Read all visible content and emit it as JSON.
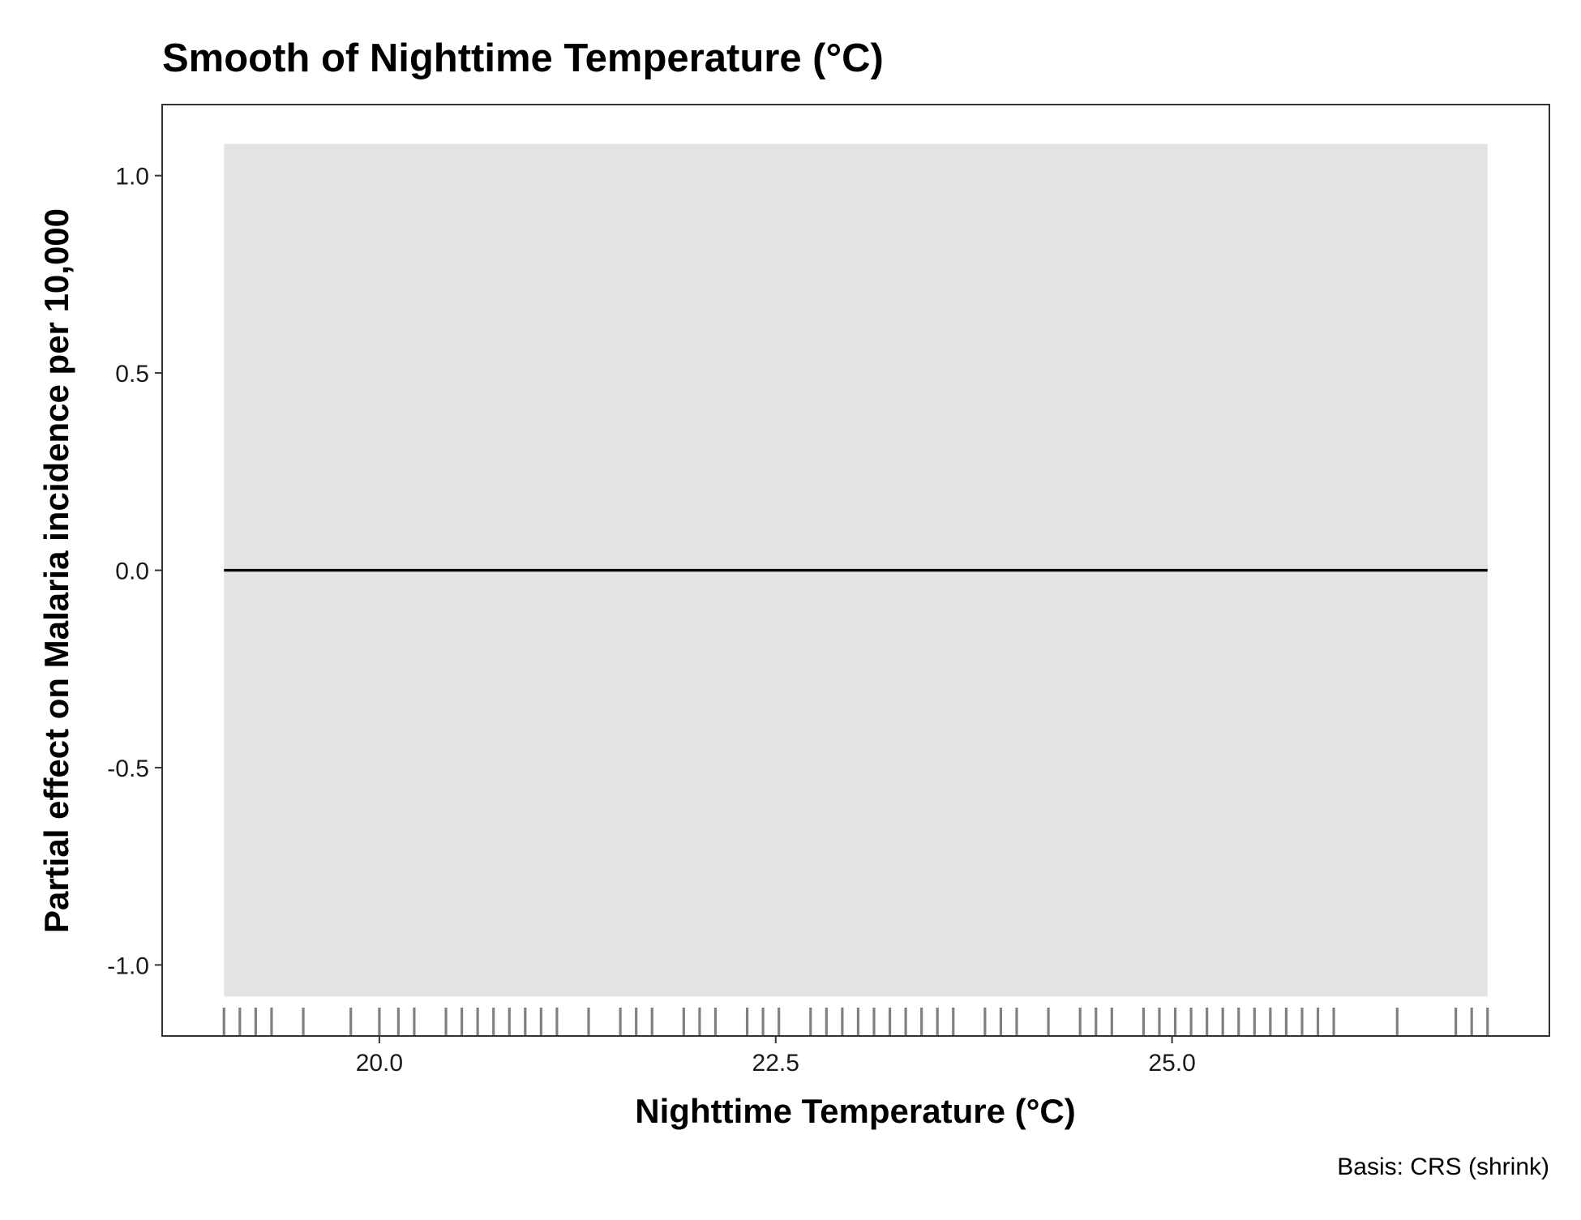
{
  "chart_data": {
    "type": "line",
    "title": "Smooth of Nighttime Temperature (°C)",
    "xlabel": "Nighttime Temperature (°C)",
    "ylabel": "Partial effect on Malaria incidence per 10,000",
    "caption": "Basis: CRS (shrink)",
    "xlim": [
      18.63,
      27.38
    ],
    "ylim": [
      -1.18,
      1.18
    ],
    "x_ticks": [
      20.0,
      22.5,
      25.0
    ],
    "x_tick_labels": [
      "20.0",
      "22.5",
      "25.0"
    ],
    "y_ticks": [
      -1.0,
      -0.5,
      0.0,
      0.5,
      1.0
    ],
    "y_tick_labels": [
      "-1.0",
      "-0.5",
      "0.0",
      "0.5",
      "1.0"
    ],
    "grid": false,
    "series": [
      {
        "x": [
          19.02,
          26.99
        ],
        "y": [
          0.0,
          0.0
        ],
        "lower": [
          -1.08,
          -1.08
        ],
        "upper": [
          1.08,
          1.08
        ]
      }
    ],
    "rug": [
      19.02,
      19.12,
      19.22,
      19.32,
      19.52,
      19.82,
      20.0,
      20.12,
      20.22,
      20.42,
      20.52,
      20.62,
      20.72,
      20.82,
      20.92,
      21.02,
      21.12,
      21.32,
      21.52,
      21.62,
      21.72,
      21.92,
      22.02,
      22.12,
      22.32,
      22.42,
      22.52,
      22.72,
      22.82,
      22.92,
      23.02,
      23.12,
      23.22,
      23.32,
      23.42,
      23.52,
      23.62,
      23.82,
      23.92,
      24.02,
      24.22,
      24.42,
      24.52,
      24.62,
      24.82,
      24.92,
      25.02,
      25.12,
      25.22,
      25.32,
      25.42,
      25.52,
      25.62,
      25.72,
      25.82,
      25.92,
      26.02,
      26.42,
      26.79,
      26.89,
      26.99
    ],
    "colors": {
      "line": "#000000",
      "band": "#e3e3e3",
      "rug": "#808080",
      "panel_border": "#333333",
      "background": "#ffffff"
    }
  }
}
